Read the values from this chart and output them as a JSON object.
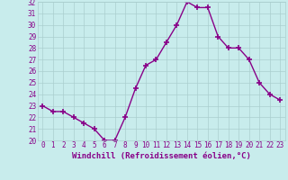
{
  "x": [
    0,
    1,
    2,
    3,
    4,
    5,
    6,
    7,
    8,
    9,
    10,
    11,
    12,
    13,
    14,
    15,
    16,
    17,
    18,
    19,
    20,
    21,
    22,
    23
  ],
  "y": [
    23,
    22.5,
    22.5,
    22,
    21.5,
    21,
    20,
    20,
    22,
    24.5,
    26.5,
    27,
    28.5,
    30,
    32,
    31.5,
    31.5,
    29,
    28,
    28,
    27,
    25,
    24,
    23.5
  ],
  "line_color": "#880088",
  "marker_color": "#880088",
  "bg_color": "#c8ecec",
  "grid_color": "#aacece",
  "xlabel": "Windchill (Refroidissement éolien,°C)",
  "ylim": [
    20,
    32
  ],
  "yticks": [
    20,
    21,
    22,
    23,
    24,
    25,
    26,
    27,
    28,
    29,
    30,
    31,
    32
  ],
  "xtick_labels": [
    "0",
    "1",
    "2",
    "3",
    "4",
    "5",
    "6",
    "7",
    "8",
    "9",
    "10",
    "11",
    "12",
    "13",
    "14",
    "15",
    "16",
    "17",
    "18",
    "19",
    "20",
    "21",
    "22",
    "23"
  ],
  "font_color": "#880088",
  "font_size_ticks": 5.5,
  "font_size_xlabel": 6.5
}
